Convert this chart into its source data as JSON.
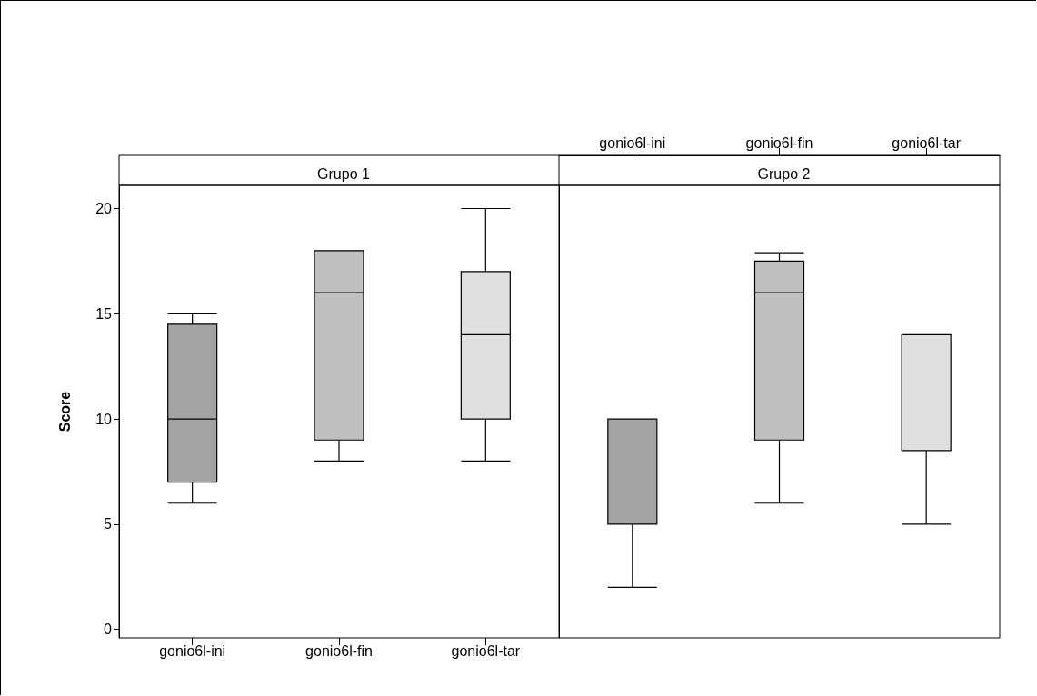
{
  "chart_data": [
    {
      "type": "box",
      "title": "Grupo 1",
      "ylabel": "Score",
      "categories": [
        "gonio6l-ini",
        "gonio6l-fin",
        "gonio6l-tar"
      ],
      "boxes": [
        {
          "low": 6,
          "q1": 7,
          "median": 10,
          "q3": 14.5,
          "high": 15
        },
        {
          "low": 8,
          "q1": 9,
          "median": 16,
          "q3": 18,
          "high": 18
        },
        {
          "low": 8,
          "q1": 10,
          "median": 14,
          "q3": 17,
          "high": 20
        }
      ],
      "colors": [
        "#a4a4a4",
        "#c0c0c0",
        "#e0e0e0"
      ],
      "ylim": [
        -0.4,
        21.1
      ],
      "yticks": [
        0,
        5,
        10,
        15,
        20
      ],
      "grid": false
    },
    {
      "type": "box",
      "title": "Grupo 2",
      "categories": [
        "gonio6l-ini",
        "gonio6l-fin",
        "gonio6l-tar"
      ],
      "boxes": [
        {
          "low": 2,
          "q1": 5,
          "median": 10,
          "q3": 10,
          "high": 10
        },
        {
          "low": 6,
          "q1": 9,
          "median": 16,
          "q3": 17.5,
          "high": 17.9
        },
        {
          "low": 5,
          "q1": 8.5,
          "median": 14,
          "q3": 14,
          "high": 14
        }
      ],
      "colors": [
        "#a4a4a4",
        "#c0c0c0",
        "#e0e0e0"
      ],
      "ylim": [
        -0.4,
        21.1
      ],
      "yticks": [
        0,
        5,
        10,
        15,
        20
      ],
      "grid": false,
      "tick_labels": "x"
    }
  ]
}
